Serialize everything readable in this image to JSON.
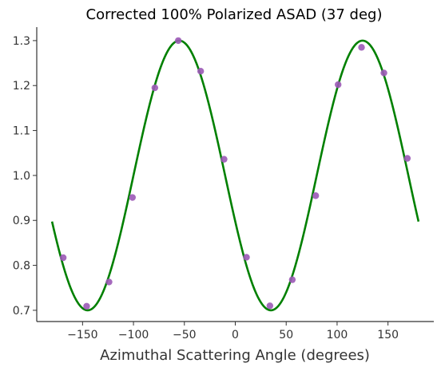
{
  "chart_data": {
    "type": "scatter",
    "title": "Corrected 100% Polarized ASAD (37 deg)",
    "xlabel": "Azimuthal Scattering Angle (degrees)",
    "ylabel": "",
    "xlim": [
      -195,
      195
    ],
    "ylim": [
      0.675,
      1.33
    ],
    "xticks": [
      -150,
      -100,
      -50,
      0,
      50,
      100,
      150
    ],
    "xtick_labels": [
      "−150",
      "−100",
      "−50",
      "0",
      "50",
      "100",
      "150"
    ],
    "yticks": [
      0.7,
      0.8,
      0.9,
      1.0,
      1.1,
      1.2,
      1.3
    ],
    "ytick_labels": [
      "0.7",
      "0.8",
      "0.9",
      "1.0",
      "1.1",
      "1.2",
      "1.3"
    ],
    "grid": false,
    "series": [
      {
        "kind": "points",
        "color": "#9b59b6",
        "x": [
          -169,
          -146,
          -124,
          -101,
          -79,
          -56,
          -34,
          -11,
          11,
          34,
          56,
          79,
          101,
          124,
          146,
          169
        ],
        "y": [
          0.817,
          0.709,
          0.763,
          0.951,
          1.195,
          1.3,
          1.232,
          1.036,
          0.818,
          0.71,
          0.768,
          0.955,
          1.202,
          1.285,
          1.228,
          1.038
        ]
      },
      {
        "kind": "fit-curve",
        "color": "#008000",
        "model": "a + b*cos(2*(x - phase))",
        "params": {
          "a": 1.0,
          "b": 0.3,
          "phase": -55
        },
        "x_range": [
          -180,
          180
        ]
      }
    ]
  }
}
